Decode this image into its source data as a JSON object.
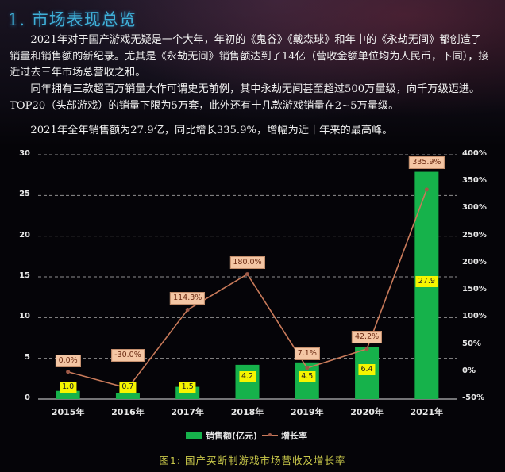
{
  "section": {
    "title": "1. 市场表现总览",
    "paragraphs": [
      "2021年对于国产游戏无疑是一个大年，年初的《鬼谷》《戴森球》和年中的《永劫无间》都创造了销量和销售额的新纪录。尤其是《永劫无间》销售额达到了14亿（营收金额单位均为人民币，下同），接近过去三年市场总营收之和。",
      "同年拥有三款超百万销量大作可谓史无前例，其中永劫无间甚至超过500万量级，向千万级迈进。TOP20（头部游戏）的销量下限为5万套，此外还有十几款游戏销量在2~5万量级。",
      "2021年全年销售额为27.9亿，同比增长335.9%，增幅为近十年来的最高峰。"
    ]
  },
  "chart_data": {
    "type": "bar",
    "title": "图1：国产买断制游戏市场营收及增长率",
    "categories": [
      "2015年",
      "2016年",
      "2017年",
      "2018年",
      "2019年",
      "2020年",
      "2021年"
    ],
    "series": [
      {
        "name": "销售额(亿元)",
        "type": "bar",
        "axis": "left",
        "color": "#16b24b",
        "values": [
          1.0,
          0.7,
          1.5,
          4.2,
          4.5,
          6.4,
          27.9
        ],
        "labels": [
          "1.0",
          "0.7",
          "1.5",
          "4.2",
          "4.5",
          "6.4",
          "27.9"
        ]
      },
      {
        "name": "增长率",
        "type": "line",
        "axis": "right",
        "color": "#c97a5a",
        "values": [
          0.0,
          -30.0,
          114.3,
          180.0,
          7.1,
          42.2,
          335.9
        ],
        "labels": [
          "0.0%",
          "-30.0%",
          "114.3%",
          "180.0%",
          "7.1%",
          "42.2%",
          "335.9%"
        ]
      }
    ],
    "xlabel": "",
    "ylabel": "",
    "ylim": [
      0,
      30
    ],
    "yticks": [
      "0",
      "5",
      "10",
      "15",
      "20",
      "25",
      "30"
    ],
    "y2lim": [
      -50,
      400
    ],
    "y2ticks": [
      "-50%",
      "0%",
      "50%",
      "100%",
      "150%",
      "200%",
      "250%",
      "300%",
      "350%",
      "400%"
    ],
    "grid": true,
    "legend_position": "bottom"
  },
  "legend": {
    "bar_label": "销售额(亿元)",
    "line_label": "增长率"
  },
  "caption": "图1:  国产买断制游戏市场营收及增长率"
}
